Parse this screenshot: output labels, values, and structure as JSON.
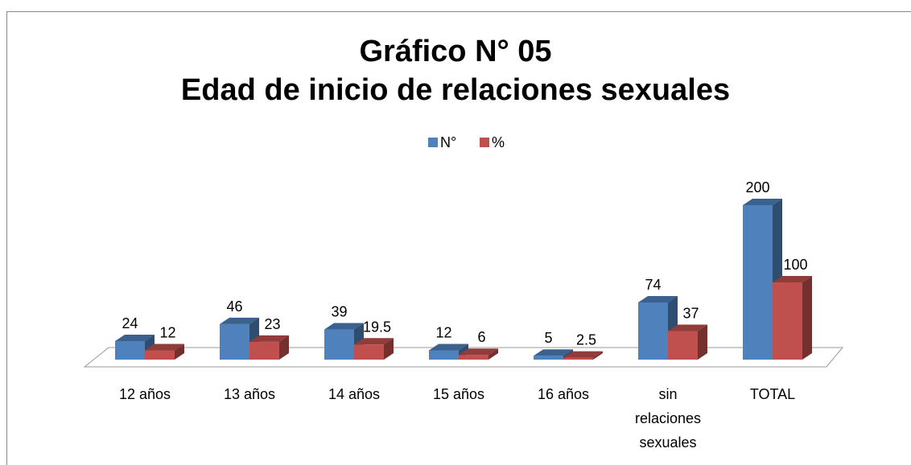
{
  "chart_data": {
    "type": "bar3d",
    "title": "Gráfico N° 05",
    "subtitle": "Edad de inicio de relaciones sexuales",
    "categories": [
      "12 años",
      "13 años",
      "14 años",
      "15 años",
      "16 años",
      "sin relaciones sexuales",
      "TOTAL"
    ],
    "series": [
      {
        "name": "N°",
        "color": "#4f81bd",
        "values": [
          24,
          46,
          39,
          12,
          5,
          74,
          200
        ]
      },
      {
        "name": "%",
        "color": "#c0504d",
        "values": [
          12,
          23,
          19.5,
          6,
          2.5,
          37,
          100
        ]
      }
    ],
    "legend": "top"
  }
}
